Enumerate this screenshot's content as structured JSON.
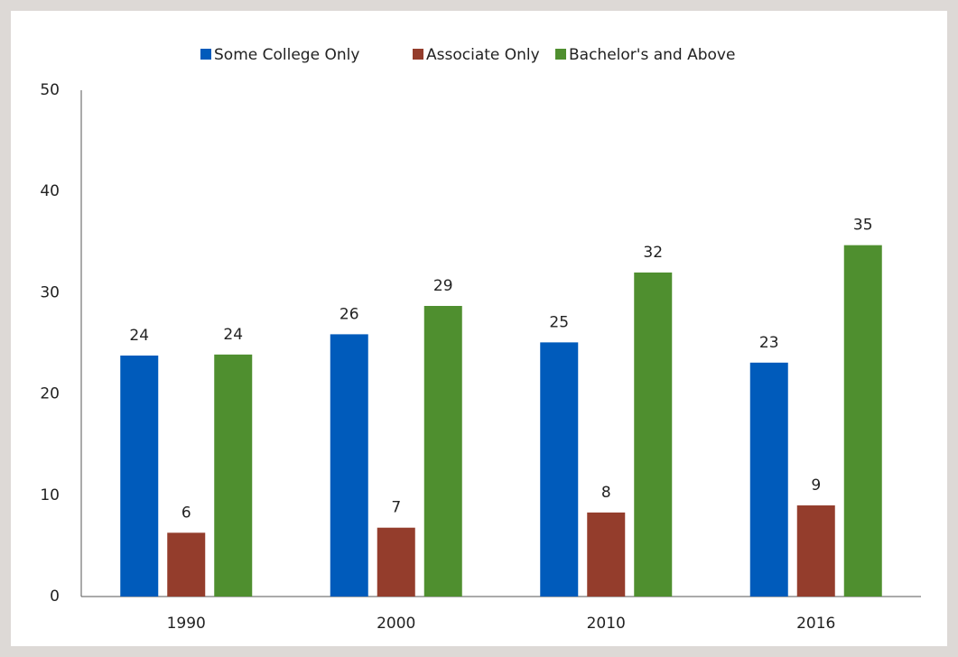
{
  "chart_data": {
    "type": "bar",
    "categories": [
      "1990",
      "2000",
      "2010",
      "2016"
    ],
    "series": [
      {
        "name": "Some College Only",
        "color": "#005bbb",
        "values": [
          23.8,
          25.9,
          25.1,
          23.1
        ],
        "value_labels": [
          "24",
          "26",
          "25",
          "23"
        ]
      },
      {
        "name": "Associate Only",
        "color": "#943d2c",
        "values": [
          6.3,
          6.8,
          8.3,
          9.0
        ],
        "value_labels": [
          "6",
          "7",
          "8",
          "9"
        ]
      },
      {
        "name": "Bachelor's and Above",
        "color": "#4f8f2f",
        "values": [
          23.9,
          28.7,
          32.0,
          34.7
        ],
        "value_labels": [
          "24",
          "29",
          "32",
          "35"
        ]
      }
    ],
    "ylim": [
      0,
      50
    ],
    "yticks": [
      0,
      10,
      20,
      30,
      40,
      50
    ],
    "grid": false,
    "legend": "top"
  }
}
